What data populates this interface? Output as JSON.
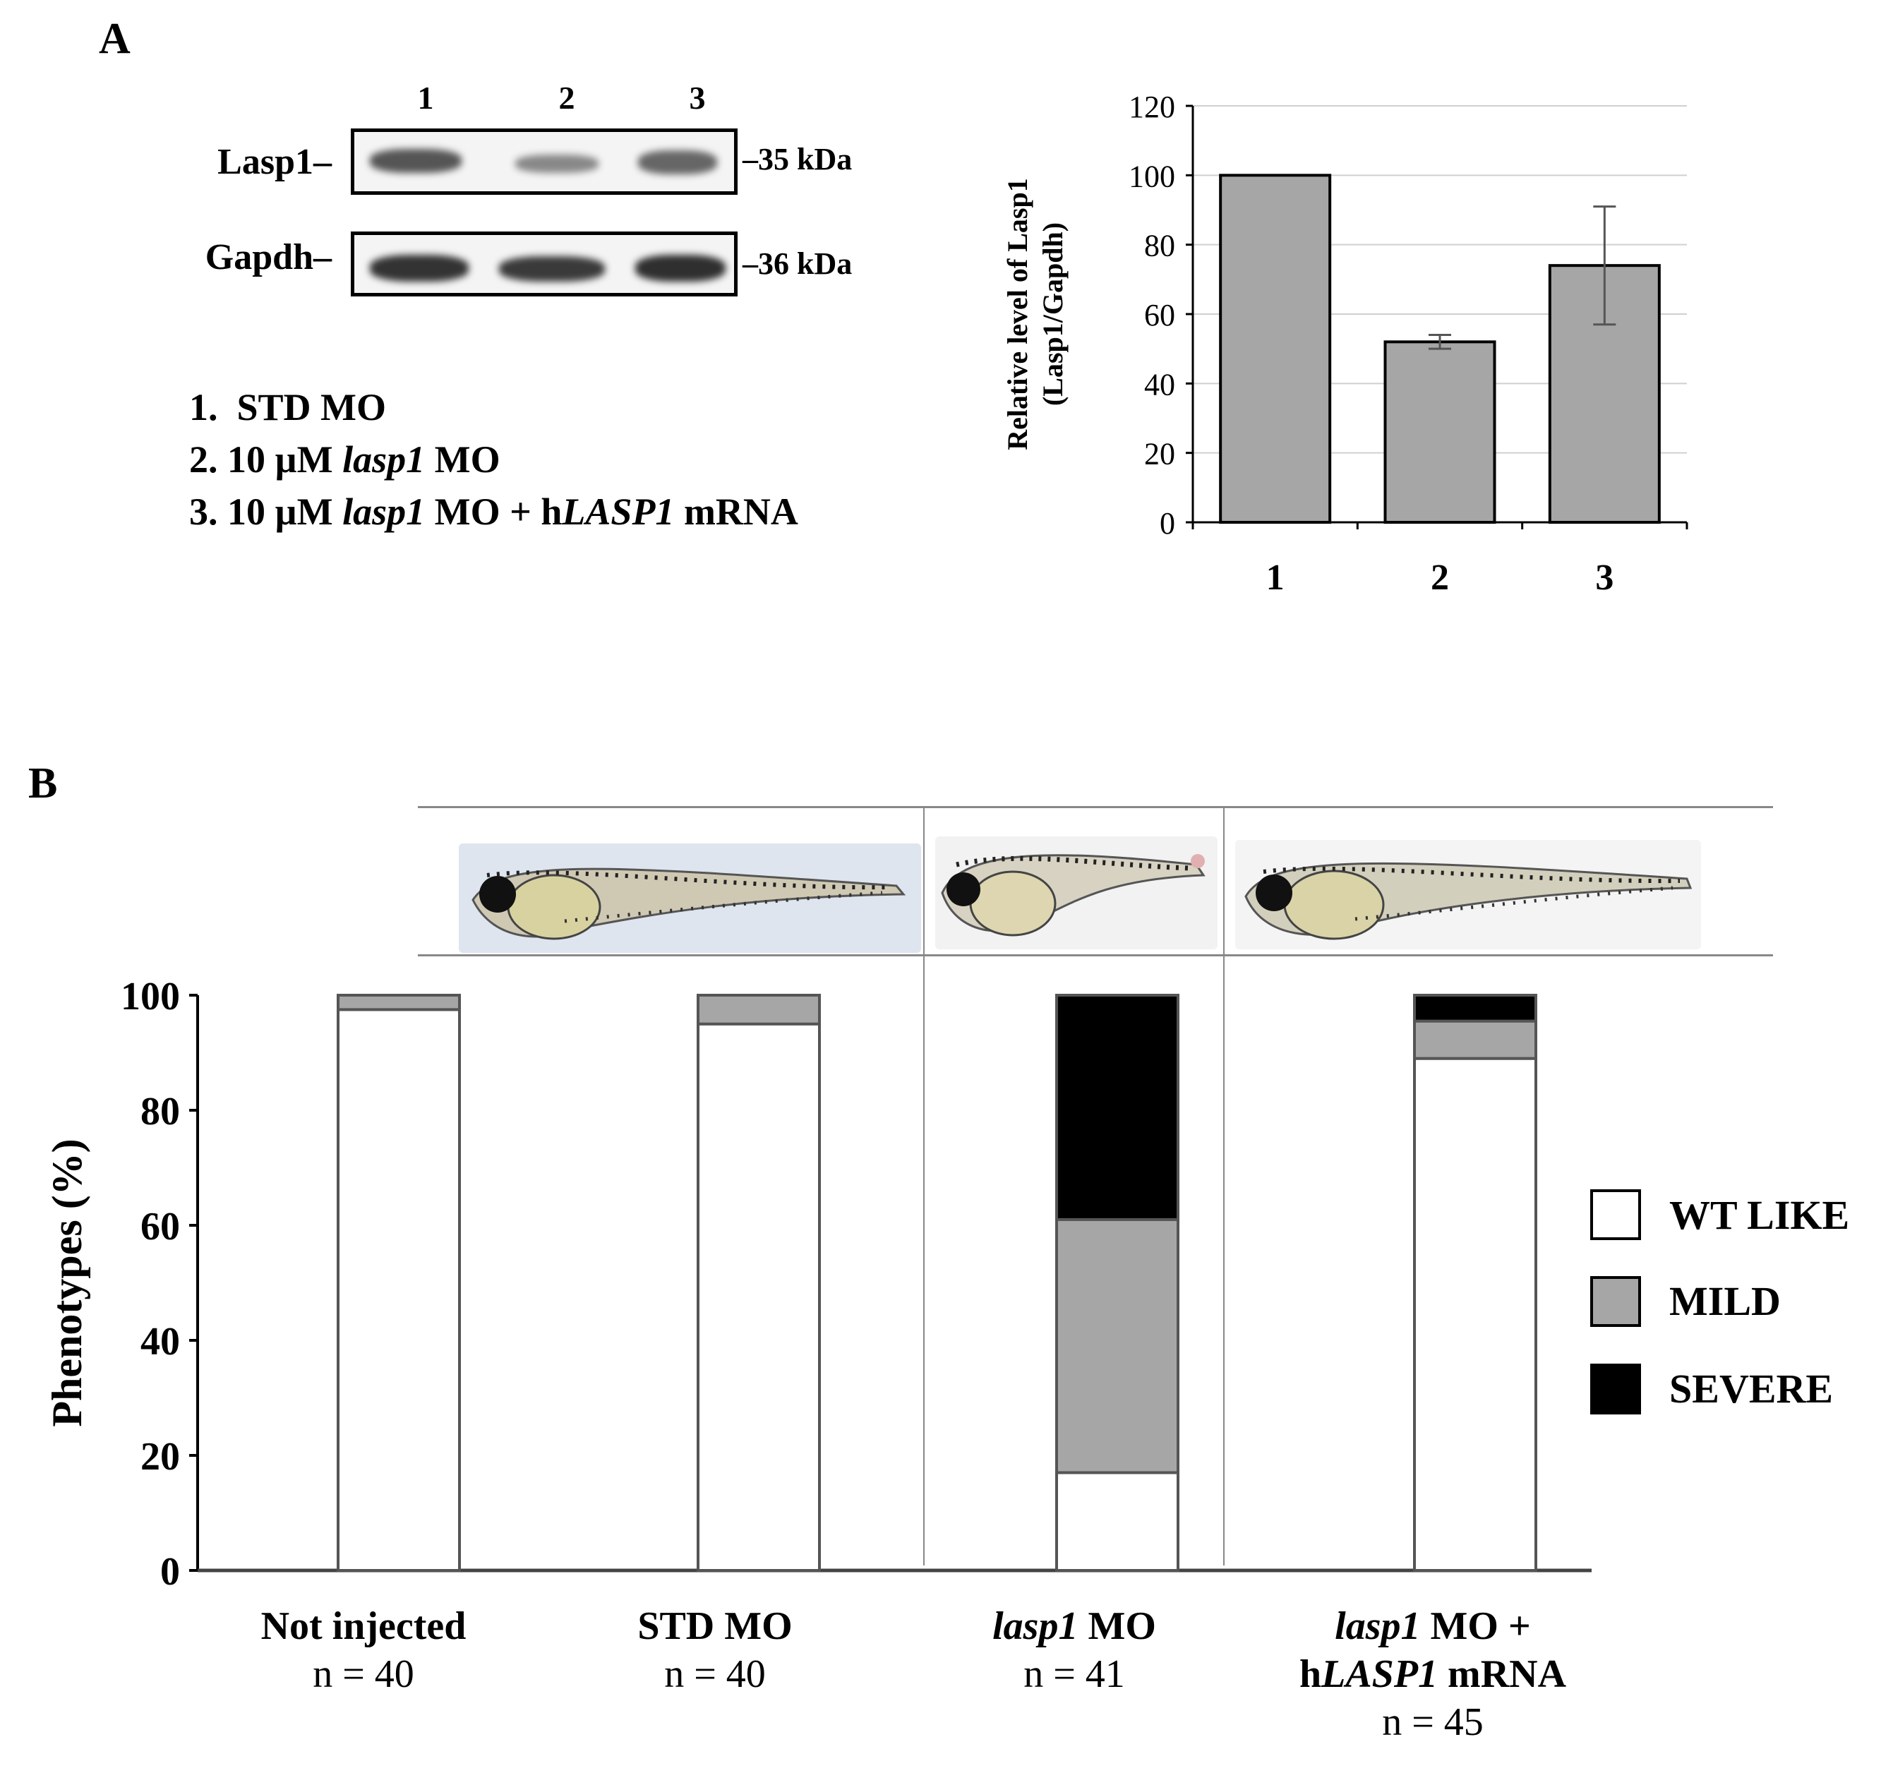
{
  "panel_a": {
    "label": "A",
    "lanes": [
      "1",
      "2",
      "3"
    ],
    "blots": [
      {
        "protein": "Lasp1",
        "marker": "35 kDa"
      },
      {
        "protein": "Gapdh",
        "marker": "36 kDa"
      }
    ],
    "legend": [
      {
        "num": "1.",
        "pre": "STD MO",
        "ital": "",
        "mid": "",
        "ital2": "",
        "post": ""
      },
      {
        "num": "2.",
        "pre": "10 µM ",
        "ital": "lasp1",
        "mid": " MO",
        "ital2": "",
        "post": ""
      },
      {
        "num": "3.",
        "pre": "10 µM ",
        "ital": "lasp1",
        "mid": " MO + h",
        "ital2": "LASP1",
        "post": " mRNA"
      }
    ]
  },
  "panel_b": {
    "label": "B",
    "legend": [
      {
        "name": "WT LIKE",
        "color": "#ffffff"
      },
      {
        "name": "MILD",
        "color": "#a6a6a6"
      },
      {
        "name": "SEVERE",
        "color": "#000000"
      }
    ],
    "categories": [
      {
        "line1_it": "",
        "line1": "Not injected",
        "line2_it": "",
        "line2": "",
        "n": "n = 40"
      },
      {
        "line1_it": "",
        "line1": "STD MO",
        "line2_it": "",
        "line2": "",
        "n": "n = 40"
      },
      {
        "line1_it": "lasp1",
        "line1": " MO",
        "line2_it": "",
        "line2": "",
        "n": "n = 41"
      },
      {
        "line1_it": "lasp1",
        "line1": " MO +",
        "line2_pre": "h",
        "line2_it": "LASP1",
        "line2": " mRNA",
        "n": "n = 45"
      }
    ]
  },
  "chart_data": [
    {
      "type": "bar",
      "categories": [
        "1",
        "2",
        "3"
      ],
      "values": [
        100,
        52,
        74
      ],
      "errors": [
        0,
        2,
        17
      ],
      "ylabel": "Relative level of Lasp1 (Lasp1/Gapdh)",
      "ylabel_lines": [
        "Relative level of Lasp1",
        "(Lasp1/Gapdh)"
      ],
      "ylim": [
        0,
        120
      ],
      "yticks": [
        "0",
        "20",
        "40",
        "60",
        "80",
        "100",
        "120"
      ],
      "grid": true,
      "bar_color": "#a6a6a6"
    },
    {
      "type": "bar",
      "stacked": true,
      "categories": [
        "Not injected",
        "STD MO",
        "lasp1 MO",
        "lasp1 MO + hLASP1 mRNA"
      ],
      "series": [
        {
          "name": "WT LIKE",
          "values": [
            97.5,
            95,
            17,
            89
          ]
        },
        {
          "name": "MILD",
          "values": [
            2.5,
            5,
            44,
            6.5
          ]
        },
        {
          "name": "SEVERE",
          "values": [
            0,
            0,
            39,
            4.5
          ]
        }
      ],
      "ylabel": "Phenotypes (%)",
      "ylim": [
        0,
        100
      ],
      "yticks": [
        "0",
        "20",
        "40",
        "60",
        "80",
        "100"
      ]
    }
  ]
}
